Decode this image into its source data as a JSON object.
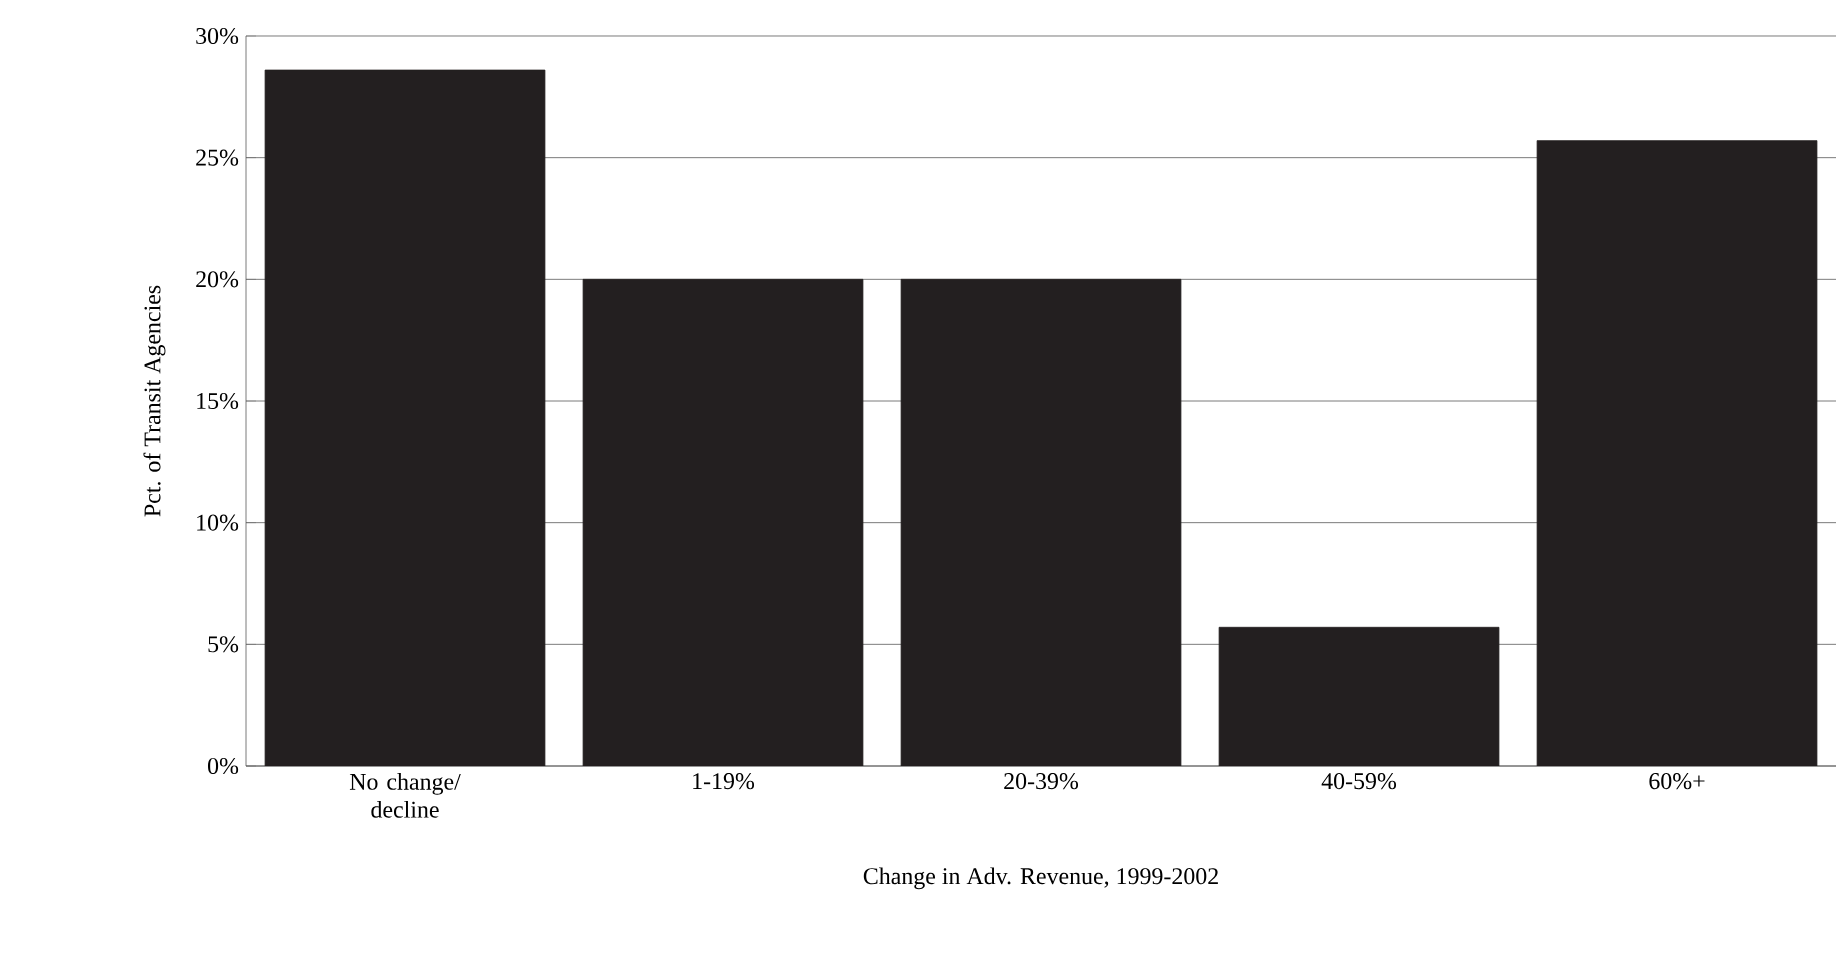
{
  "chart_data": {
    "type": "bar",
    "xlabel": "Change in Adv. Revenue, 1999-2002",
    "ylabel": "Pct. of Transit Agencies",
    "categories": [
      "No change/ decline",
      "1-19%",
      "20-39%",
      "40-59%",
      "60%+"
    ],
    "values": [
      28.6,
      20,
      20,
      5.7,
      25.7
    ],
    "color": "#231f20",
    "ylim": [
      0,
      30
    ],
    "yticks": [
      {
        "value": 0,
        "label": "0%"
      },
      {
        "value": 5,
        "label": "5%"
      },
      {
        "value": 10,
        "label": "10%"
      },
      {
        "value": 15,
        "label": "15%"
      },
      {
        "value": 20,
        "label": "20%"
      },
      {
        "value": 25,
        "label": "25%"
      },
      {
        "value": 30,
        "label": "30%"
      }
    ],
    "grid": "y"
  }
}
